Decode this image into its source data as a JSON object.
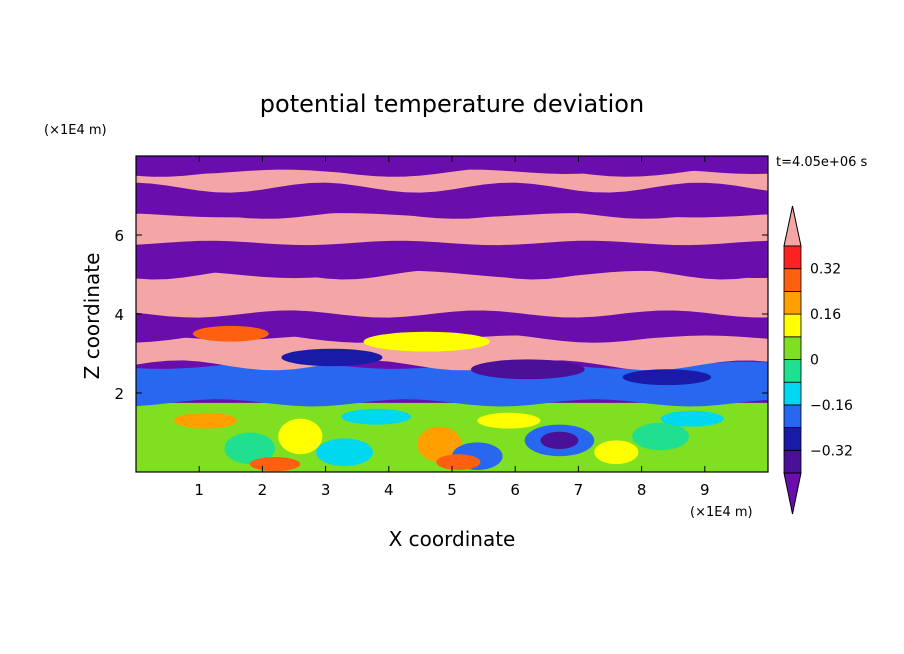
{
  "chart_data": {
    "type": "heatmap",
    "title": "potential temperature deviation",
    "xlabel": "X coordinate",
    "ylabel": "Z coordinate",
    "x_unit": "(×1E4 m)",
    "y_unit": "(×1E4 m)",
    "time_label": "t=4.05e+06 s",
    "xlim": [
      0,
      10
    ],
    "ylim": [
      0,
      8
    ],
    "x_ticks": [
      1,
      2,
      3,
      4,
      5,
      6,
      7,
      8,
      9
    ],
    "y_ticks": [
      2,
      4,
      6
    ],
    "x_tick_labels": [
      "1",
      "2",
      "3",
      "4",
      "5",
      "6",
      "7",
      "8",
      "9"
    ],
    "y_tick_labels": [
      "2",
      "4",
      "6"
    ],
    "colorbar": {
      "levels": [
        -0.4,
        -0.32,
        -0.24,
        -0.16,
        -0.08,
        0,
        0.08,
        0.16,
        0.24,
        0.32,
        0.4
      ],
      "labeled_ticks": [
        0.32,
        0.16,
        0,
        -0.16,
        -0.32
      ],
      "tick_labels": [
        "0.32",
        "0.16",
        "0",
        "−0.16",
        "−0.32"
      ],
      "colors_low_to_high": [
        "#4a1098",
        "#1a1aa8",
        "#2868f0",
        "#00d8f0",
        "#20e090",
        "#7ee020",
        "#ffff00",
        "#ffa000",
        "#ff6010",
        "#ff2020"
      ],
      "under_color": "#6a0dad",
      "over_color": "#f4a6a6",
      "extend": "both"
    },
    "bands_zero_to_top": [
      {
        "z_top": 1.75,
        "regime": "turbulent mixed layer, values mostly between -0.32 and 0.32"
      },
      {
        "z_top": 2.7,
        "value": "mixed"
      },
      {
        "z_top": 3.4,
        "value": "over"
      },
      {
        "z_top": 4.0,
        "value": "under"
      },
      {
        "z_top": 5.0,
        "value": "over"
      },
      {
        "z_top": 5.8,
        "value": "under"
      },
      {
        "z_top": 6.5,
        "value": "over"
      },
      {
        "z_top": 7.2,
        "value": "under"
      },
      {
        "z_top": 7.6,
        "value": "over"
      },
      {
        "z_top": 8.0,
        "value": "under"
      }
    ]
  }
}
